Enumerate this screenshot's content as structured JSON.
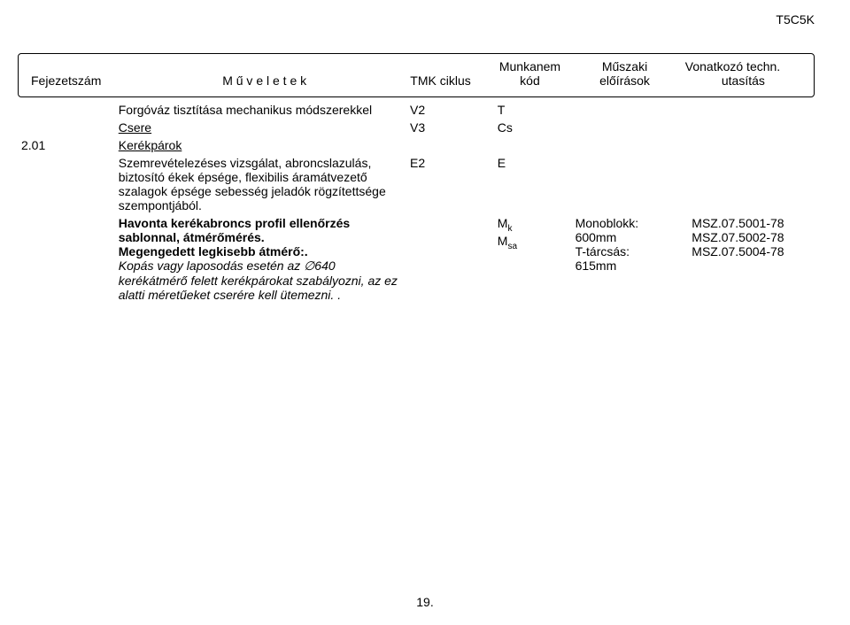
{
  "doc_code": "T5C5K",
  "header": {
    "fejezetszam": "Fejezetszám",
    "muveletek": "M ű v e l e t e k",
    "tmk": "TMK ciklus",
    "munkanem": "Munkanem",
    "kod": "kód",
    "muszaki": "Műszaki",
    "eloirasok": "előírások",
    "vonatkozo": "Vonatkozó techn.",
    "utasitas": "utasítás"
  },
  "rows": [
    {
      "muv": "Forgóváz tisztítása mechanikus módszerekkel",
      "tmk": "V2",
      "kod": "T"
    },
    {
      "muv_underline": "Csere",
      "tmk": "V3",
      "kod": "Cs"
    },
    {
      "fej": "2.01",
      "muv_underline": "Kerékpárok"
    },
    {
      "muv": "Szemrevételezéses vizsgálat, abroncslazulás, biztosító ékek épsége, flexibilis áramátvezető szalagok épsége sebesség jeladók rögzítettsége szempontjából.",
      "tmk": "E2",
      "kod": "E"
    }
  ],
  "bold_block": {
    "line1": "Havonta kerékabroncs profil ellenőrzés sablonnal, átmérőmérés.",
    "line2": "Megengedett legkisebb átmérő:"
  },
  "italic_block": "Kopás vagy laposodás esetén az ∅640 kerékátmérő felett kerékpárokat szabályozni, az ez alatti méretűeket cserére kell ütemezni. .",
  "kod_col": {
    "mk": "M",
    "mk_sub": "k",
    "msa": "M",
    "msa_sub": "sa"
  },
  "elo_col": {
    "l1": "Monoblokk:",
    "l2": "600mm",
    "l3": "T-tárcsás:",
    "l4": "615mm"
  },
  "uta_col": {
    "l1": "MSZ.07.5001-78",
    "l2": "MSZ.07.5002-78",
    "l3": "MSZ.07.5004-78"
  },
  "page_number": "19.",
  "style": {
    "font_base_pt": 14,
    "sub_font_pt": 10,
    "text_color": "#000000",
    "bg_color": "#ffffff",
    "border_color": "#000000"
  }
}
